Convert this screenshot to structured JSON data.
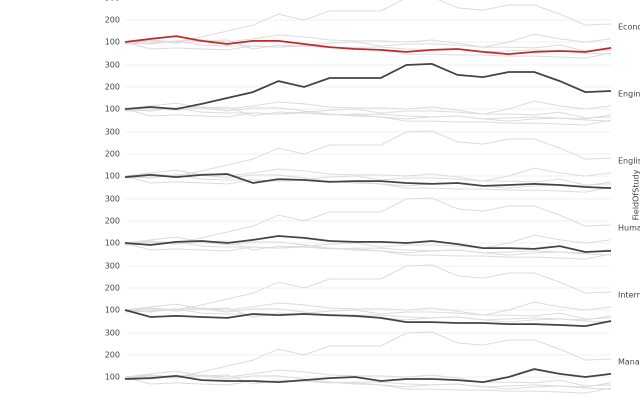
{
  "chart_data": {
    "type": "line",
    "facet_label": "FieldOfStudy",
    "ylim": [
      50,
      350
    ],
    "yticks": [
      100,
      200,
      300
    ],
    "grid": true,
    "context_color": "#dcdcdc",
    "series": [
      {
        "name": "Econo",
        "color": "#c62828",
        "values": [
          100,
          114,
          127,
          105,
          91,
          105,
          105,
          91,
          77,
          68,
          64,
          55,
          64,
          68,
          55,
          45,
          55,
          59,
          55,
          73
        ]
      },
      {
        "name": "Engine",
        "color": "#444444",
        "values": [
          100,
          109,
          100,
          123,
          150,
          177,
          227,
          200,
          241,
          241,
          241,
          300,
          305,
          255,
          245,
          268,
          268,
          227,
          177,
          182
        ]
      },
      {
        "name": "Englis",
        "color": "#444444",
        "values": [
          95,
          105,
          95,
          105,
          109,
          68,
          86,
          82,
          73,
          77,
          77,
          68,
          64,
          68,
          55,
          59,
          64,
          59,
          50,
          45
        ]
      },
      {
        "name": "Human",
        "color": "#444444",
        "values": [
          100,
          91,
          105,
          109,
          100,
          114,
          132,
          123,
          109,
          105,
          105,
          100,
          109,
          95,
          77,
          77,
          73,
          86,
          59,
          64
        ]
      },
      {
        "name": "Intern",
        "color": "#444444",
        "values": [
          100,
          68,
          73,
          68,
          64,
          82,
          77,
          82,
          77,
          73,
          64,
          45,
          45,
          41,
          41,
          36,
          36,
          32,
          27,
          50
        ]
      },
      {
        "name": "Manag",
        "color": "#444444",
        "values": [
          91,
          95,
          105,
          86,
          82,
          82,
          77,
          86,
          95,
          100,
          82,
          91,
          91,
          86,
          77,
          100,
          136,
          114,
          100,
          114
        ]
      }
    ]
  }
}
